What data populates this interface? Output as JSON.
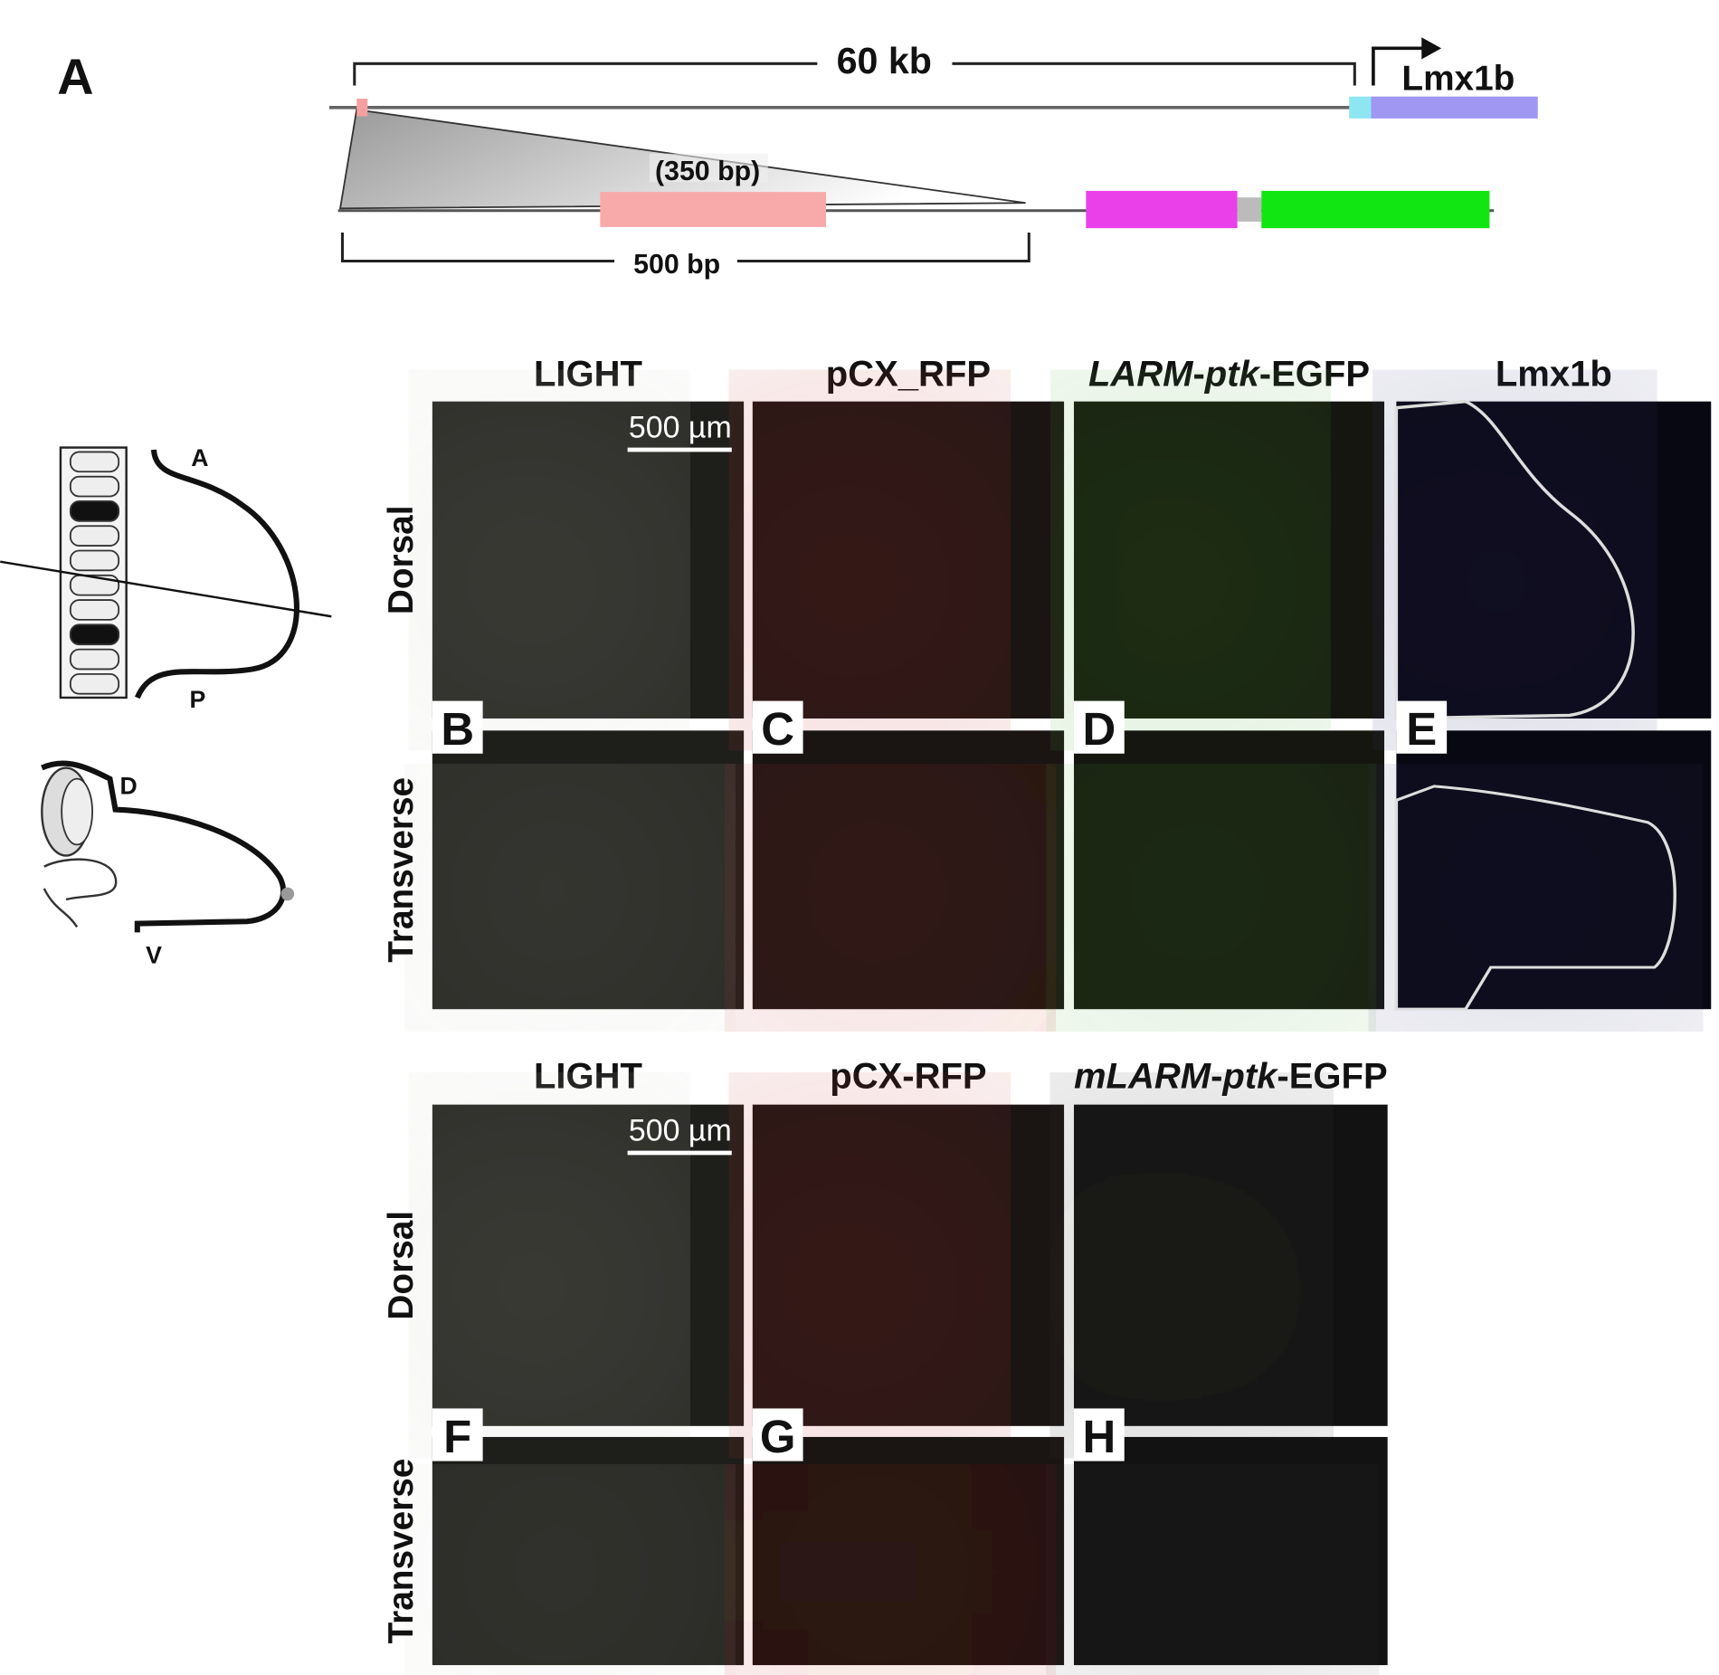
{
  "panel_a": {
    "label": "A",
    "span_label": "60 kb",
    "gene": "Lmx1b",
    "element_size": "(350 bp)",
    "zoom_label": "500 bp"
  },
  "schematics": {
    "limb_dorsal": {
      "anterior": "A",
      "posterior": "P"
    },
    "limb_transverse": {
      "dorsal": "D",
      "ventral": "V"
    }
  },
  "grid_top": {
    "columns": [
      [
        {
          "text": "LIGHT"
        }
      ],
      [
        {
          "text": "pCX_RFP"
        }
      ],
      [
        {
          "text": "LARM",
          "italic": true
        },
        {
          "text": "-"
        },
        {
          "text": "ptk",
          "italic": true
        },
        {
          "text": "-EGFP"
        }
      ],
      [
        {
          "text": "Lmx1b"
        }
      ]
    ],
    "rows": [
      "Dorsal",
      "Transverse"
    ],
    "panel_labels": [
      "B",
      "C",
      "D",
      "E"
    ],
    "scale_bar": "500 µm"
  },
  "grid_bottom": {
    "columns": [
      [
        {
          "text": "LIGHT"
        }
      ],
      [
        {
          "text": "pCX-RFP"
        }
      ],
      [
        {
          "text": "mLARM",
          "italic": true
        },
        {
          "text": "-"
        },
        {
          "text": "ptk",
          "italic": true
        },
        {
          "text": "-EGFP"
        }
      ]
    ],
    "rows": [
      "Dorsal",
      "Transverse"
    ],
    "panel_labels": [
      "F",
      "G",
      "H"
    ],
    "scale_bar": "500 µm"
  }
}
